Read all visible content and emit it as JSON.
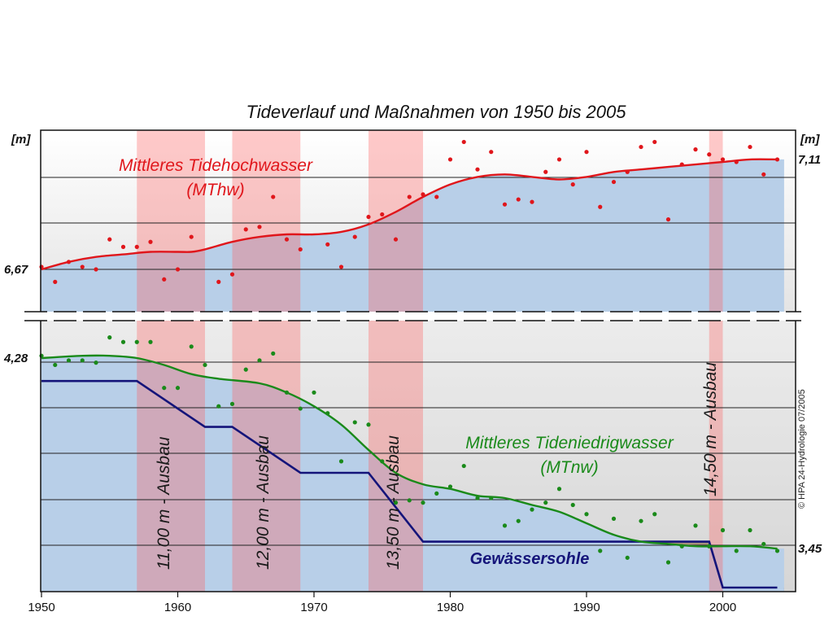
{
  "chart_data": {
    "type": "line",
    "title": "Tideverlauf und Maßnahmen von 1950 bis 2005",
    "unit_left": "[m]",
    "unit_right": "[m]",
    "xlim": [
      1950,
      2005
    ],
    "x_ticks": [
      1950,
      1960,
      1970,
      1980,
      1990,
      2000
    ],
    "y_labels": [
      {
        "text": "6,67",
        "side": "left",
        "series": "mthw",
        "value": 6.67
      },
      {
        "text": "4,28",
        "side": "left",
        "series": "mtnw",
        "value": 4.28
      },
      {
        "text": "7,11",
        "side": "right",
        "series": "mthw",
        "value": 7.11
      },
      {
        "text": "3,45",
        "side": "right",
        "series": "mtnw",
        "value": 3.45
      }
    ],
    "upper_panel": {
      "ylim": [
        6.55,
        7.16
      ]
    },
    "lower_panel": {
      "ylim": [
        3.2,
        4.36
      ]
    },
    "series": [
      {
        "key": "mthw",
        "name": "Mittleres Tidehochwasser",
        "abbr": "(MThw)",
        "color": "#e0161b",
        "panel": "upper",
        "x": [
          1950,
          1952,
          1954,
          1956,
          1958,
          1960,
          1961,
          1962,
          1964,
          1966,
          1968,
          1970,
          1972,
          1974,
          1976,
          1978,
          1980,
          1982,
          1984,
          1986,
          1988,
          1990,
          1992,
          1994,
          1996,
          1998,
          2000,
          2002,
          2004
        ],
        "y": [
          6.67,
          6.7,
          6.72,
          6.73,
          6.74,
          6.74,
          6.74,
          6.75,
          6.78,
          6.8,
          6.81,
          6.81,
          6.82,
          6.85,
          6.9,
          6.96,
          7.01,
          7.04,
          7.05,
          7.04,
          7.03,
          7.04,
          7.06,
          7.07,
          7.08,
          7.09,
          7.1,
          7.11,
          7.11
        ]
      },
      {
        "key": "mtnw",
        "name": "Mittleres Tideniedrigwasser",
        "abbr": "(MTnw)",
        "color": "#1a8a1a",
        "panel": "lower",
        "x": [
          1950,
          1953,
          1955,
          1957,
          1959,
          1961,
          1963,
          1966,
          1968,
          1970,
          1972,
          1974,
          1976,
          1978,
          1980,
          1982,
          1984,
          1986,
          1988,
          1990,
          1992,
          1994,
          1996,
          1998,
          2000,
          2002,
          2004
        ],
        "y": [
          4.28,
          4.29,
          4.29,
          4.28,
          4.25,
          4.21,
          4.19,
          4.17,
          4.13,
          4.07,
          3.99,
          3.88,
          3.78,
          3.73,
          3.71,
          3.68,
          3.67,
          3.64,
          3.61,
          3.56,
          3.51,
          3.48,
          3.47,
          3.46,
          3.46,
          3.46,
          3.45
        ]
      },
      {
        "key": "sohle",
        "name": "Gewässersohle",
        "color": "#14147a",
        "panel": "lower",
        "x": [
          1950,
          1957,
          1962,
          1964,
          1969,
          1974,
          1978,
          1999,
          2000,
          2004
        ],
        "y": [
          4.18,
          4.18,
          3.98,
          3.98,
          3.78,
          3.78,
          3.48,
          3.48,
          3.28,
          3.28
        ]
      }
    ],
    "scatter_points": {
      "mthw": {
        "x": [
          1950,
          1951,
          1952,
          1953,
          1954,
          1955,
          1956,
          1957,
          1958,
          1959,
          1960,
          1961,
          1963,
          1964,
          1965,
          1966,
          1967,
          1968,
          1969,
          1971,
          1972,
          1973,
          1974,
          1975,
          1976,
          1977,
          1978,
          1979,
          1980,
          1981,
          1982,
          1983,
          1984,
          1985,
          1986,
          1987,
          1988,
          1989,
          1990,
          1991,
          1992,
          1993,
          1994,
          1995,
          1996,
          1997,
          1998,
          1999,
          2000,
          2001,
          2002,
          2003,
          2004
        ],
        "y": [
          6.68,
          6.62,
          6.7,
          6.68,
          6.67,
          6.79,
          6.76,
          6.76,
          6.78,
          6.63,
          6.67,
          6.8,
          6.62,
          6.65,
          6.83,
          6.84,
          6.96,
          6.79,
          6.75,
          6.77,
          6.68,
          6.8,
          6.88,
          6.89,
          6.79,
          6.96,
          6.97,
          6.96,
          7.11,
          7.18,
          7.07,
          7.14,
          6.93,
          6.95,
          6.94,
          7.06,
          7.11,
          7.01,
          7.14,
          6.92,
          7.02,
          7.06,
          7.16,
          7.18,
          6.87,
          7.09,
          7.15,
          7.13,
          7.11,
          7.1,
          7.16,
          7.05,
          7.11
        ]
      },
      "mtnw": {
        "x": [
          1950,
          1951,
          1952,
          1953,
          1954,
          1955,
          1956,
          1957,
          1958,
          1959,
          1960,
          1961,
          1962,
          1963,
          1964,
          1965,
          1966,
          1967,
          1968,
          1969,
          1970,
          1971,
          1972,
          1973,
          1974,
          1975,
          1976,
          1977,
          1978,
          1979,
          1980,
          1981,
          1982,
          1983,
          1984,
          1985,
          1986,
          1987,
          1988,
          1989,
          1990,
          1991,
          1992,
          1993,
          1994,
          1995,
          1996,
          1997,
          1998,
          1999,
          2000,
          2001,
          2002,
          2003,
          2004
        ],
        "y": [
          4.29,
          4.25,
          4.27,
          4.27,
          4.26,
          4.37,
          4.35,
          4.35,
          4.35,
          4.15,
          4.15,
          4.33,
          4.25,
          4.07,
          4.08,
          4.23,
          4.27,
          4.3,
          4.13,
          4.06,
          4.13,
          4.04,
          3.83,
          4.0,
          3.99,
          3.83,
          3.65,
          3.66,
          3.65,
          3.69,
          3.72,
          3.81,
          3.67,
          3.67,
          3.55,
          3.57,
          3.62,
          3.65,
          3.71,
          3.64,
          3.6,
          3.44,
          3.58,
          3.41,
          3.57,
          3.6,
          3.39,
          3.46,
          3.55,
          3.46,
          3.53,
          3.44,
          3.53,
          3.47,
          3.44
        ]
      }
    },
    "ausbau_periods": [
      {
        "label": "11,00 m - Ausbau",
        "start": 1957,
        "end": 1962
      },
      {
        "label": "12,00 m - Ausbau",
        "start": 1964,
        "end": 1969
      },
      {
        "label": "13,50 m - Ausbau",
        "start": 1974,
        "end": 1978
      },
      {
        "label": "14,50 m - Ausbau",
        "start": 1999,
        "end": 2000
      }
    ],
    "grid": true,
    "axis_break": true
  },
  "copyright": "© HPA 24-Hydrologie 07/2005"
}
